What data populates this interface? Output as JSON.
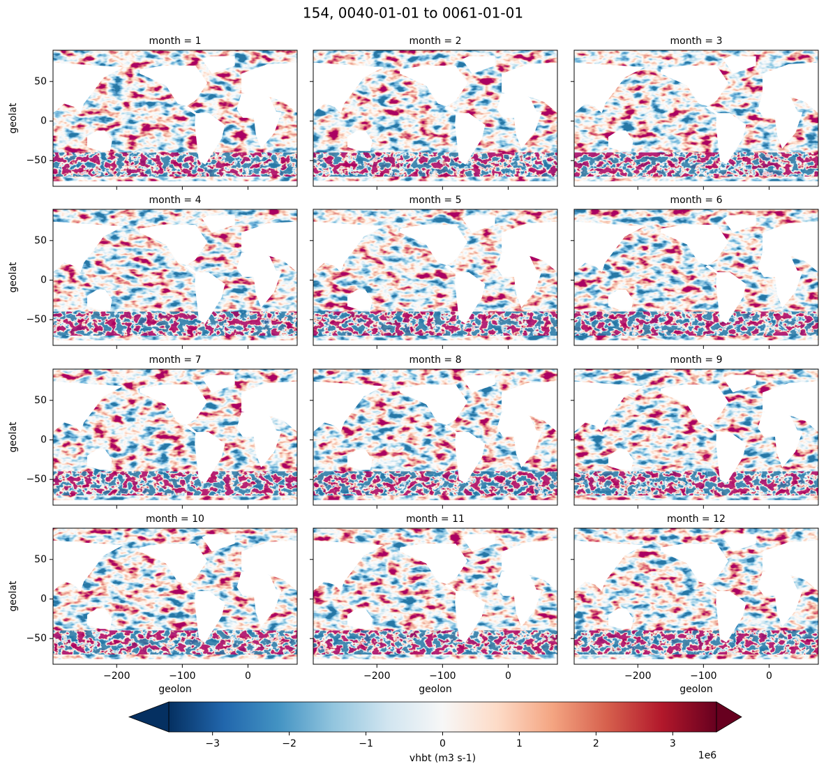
{
  "chart_data": {
    "type": "heatmap-grid",
    "title": "154, 0040-01-01 to 0061-01-01",
    "panels": [
      {
        "title": "month = 1"
      },
      {
        "title": "month = 2"
      },
      {
        "title": "month = 3"
      },
      {
        "title": "month = 4"
      },
      {
        "title": "month = 5"
      },
      {
        "title": "month = 6"
      },
      {
        "title": "month = 7"
      },
      {
        "title": "month = 8"
      },
      {
        "title": "month = 9"
      },
      {
        "title": "month = 10"
      },
      {
        "title": "month = 11"
      },
      {
        "title": "month = 12"
      }
    ],
    "xlabel": "geolon",
    "ylabel": "geolat",
    "xlim": [
      -297,
      75
    ],
    "ylim": [
      -82.5,
      89.5
    ],
    "xticks": [
      {
        "value": -200,
        "label": "−200"
      },
      {
        "value": -100,
        "label": "−100"
      },
      0
    ],
    "yticks": [
      {
        "value": -50,
        "label": "−50"
      },
      0,
      50
    ],
    "colorbar": {
      "label": "vhbt (m3 s-1)",
      "offset_text": "1e6",
      "clim": [
        -3570000,
        3570000
      ],
      "ticks": [
        {
          "value": -3000000,
          "label": "−3"
        },
        {
          "value": -2000000,
          "label": "−2"
        },
        {
          "value": -1000000,
          "label": "−1"
        },
        0,
        {
          "value": 1000000,
          "label": "1"
        },
        {
          "value": 2000000,
          "label": "2"
        },
        {
          "value": 3000000,
          "label": "3"
        }
      ],
      "extend": "both",
      "colors": [
        "#053061",
        "#2166ac",
        "#4393c3",
        "#92c5de",
        "#d1e5f0",
        "#f7f7f7",
        "#fddbc7",
        "#f4a582",
        "#d6604d",
        "#b2182b",
        "#67001f"
      ]
    }
  }
}
